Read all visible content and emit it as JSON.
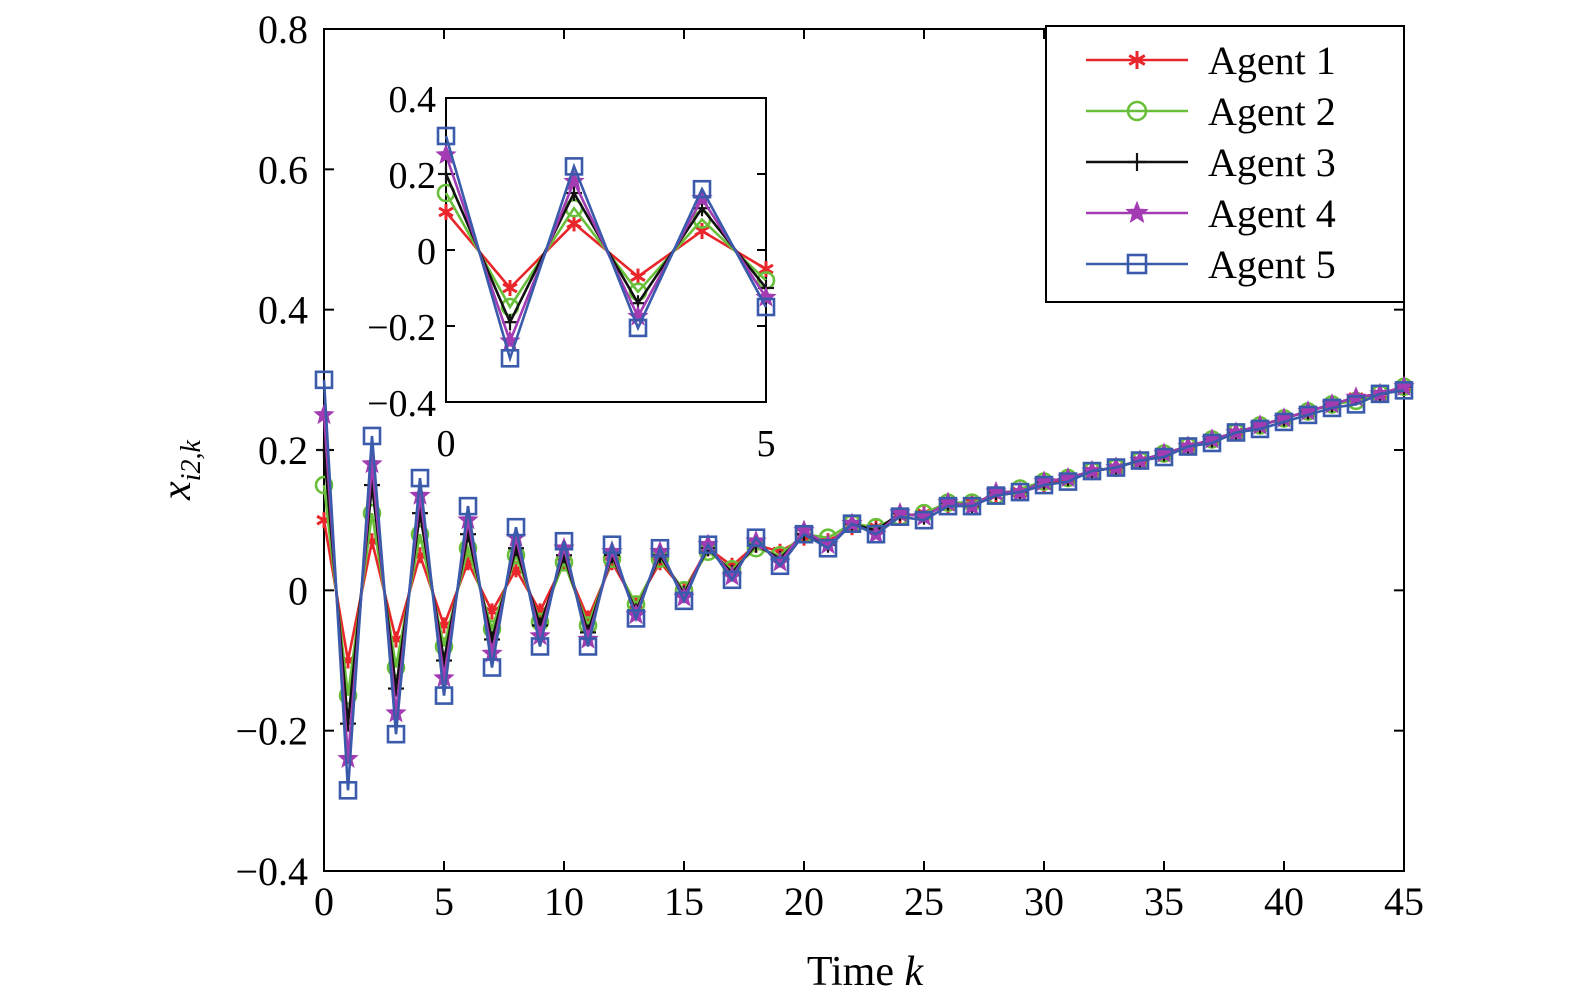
{
  "chart_data": {
    "type": "line",
    "xlabel": "Time",
    "xlabel_var": "k",
    "ylabel": "x",
    "ylabel_sub": "i2,k",
    "xlim": [
      0,
      45
    ],
    "ylim": [
      -0.4,
      0.8
    ],
    "xticks": [
      0,
      5,
      10,
      15,
      20,
      25,
      30,
      35,
      40,
      45
    ],
    "yticks": [
      -0.4,
      -0.2,
      0,
      0.2,
      0.4,
      0.6,
      0.8
    ],
    "xtick_labels": [
      "0",
      "5",
      "10",
      "15",
      "20",
      "25",
      "30",
      "35",
      "40",
      "45"
    ],
    "ytick_labels": [
      "−0.4",
      "−0.2",
      "0",
      "0.2",
      "0.4",
      "0.6",
      "0.8"
    ],
    "grid": false,
    "legend_position": "top-right",
    "x": [
      0,
      1,
      2,
      3,
      4,
      5,
      6,
      7,
      8,
      9,
      10,
      11,
      12,
      13,
      14,
      15,
      16,
      17,
      18,
      19,
      20,
      21,
      22,
      23,
      24,
      25,
      26,
      27,
      28,
      29,
      30,
      31,
      32,
      33,
      34,
      35,
      36,
      37,
      38,
      39,
      40,
      41,
      42,
      43,
      44,
      45
    ],
    "series": [
      {
        "name": "Agent 1",
        "color": "#e8262b",
        "marker": "asterisk",
        "values": [
          0.1,
          -0.1,
          0.07,
          -0.07,
          0.05,
          -0.05,
          0.04,
          -0.03,
          0.03,
          -0.03,
          0.04,
          -0.04,
          0.04,
          -0.02,
          0.04,
          0.0,
          0.06,
          0.035,
          0.065,
          0.055,
          0.075,
          0.07,
          0.09,
          0.09,
          0.105,
          0.11,
          0.12,
          0.125,
          0.135,
          0.14,
          0.15,
          0.16,
          0.17,
          0.175,
          0.185,
          0.195,
          0.205,
          0.215,
          0.225,
          0.235,
          0.245,
          0.255,
          0.265,
          0.275,
          0.28,
          0.29
        ]
      },
      {
        "name": "Agent 2",
        "color": "#6abf3a",
        "marker": "circle",
        "values": [
          0.15,
          -0.15,
          0.11,
          -0.11,
          0.08,
          -0.08,
          0.06,
          -0.055,
          0.05,
          -0.045,
          0.04,
          -0.05,
          0.045,
          -0.02,
          0.045,
          0.0,
          0.055,
          0.03,
          0.06,
          0.05,
          0.08,
          0.075,
          0.095,
          0.09,
          0.105,
          0.11,
          0.125,
          0.125,
          0.135,
          0.145,
          0.155,
          0.16,
          0.17,
          0.175,
          0.185,
          0.195,
          0.205,
          0.215,
          0.225,
          0.235,
          0.245,
          0.255,
          0.265,
          0.27,
          0.28,
          0.29
        ]
      },
      {
        "name": "Agent 3",
        "color": "#111111",
        "marker": "plus",
        "values": [
          0.2,
          -0.19,
          0.15,
          -0.14,
          0.11,
          -0.1,
          0.08,
          -0.07,
          0.06,
          -0.05,
          0.05,
          -0.06,
          0.05,
          -0.03,
          0.05,
          -0.005,
          0.06,
          0.025,
          0.065,
          0.045,
          0.08,
          0.065,
          0.095,
          0.085,
          0.11,
          0.105,
          0.125,
          0.12,
          0.14,
          0.14,
          0.155,
          0.16,
          0.17,
          0.175,
          0.185,
          0.195,
          0.205,
          0.215,
          0.225,
          0.235,
          0.245,
          0.255,
          0.265,
          0.275,
          0.28,
          0.29
        ]
      },
      {
        "name": "Agent 4",
        "color": "#a33cb3",
        "marker": "star",
        "values": [
          0.25,
          -0.24,
          0.18,
          -0.175,
          0.135,
          -0.125,
          0.1,
          -0.09,
          0.075,
          -0.065,
          0.06,
          -0.07,
          0.055,
          -0.035,
          0.055,
          -0.01,
          0.065,
          0.02,
          0.07,
          0.04,
          0.085,
          0.065,
          0.095,
          0.08,
          0.11,
          0.105,
          0.125,
          0.12,
          0.14,
          0.14,
          0.155,
          0.16,
          0.17,
          0.175,
          0.185,
          0.195,
          0.205,
          0.215,
          0.225,
          0.235,
          0.245,
          0.255,
          0.265,
          0.275,
          0.28,
          0.29
        ]
      },
      {
        "name": "Agent 5",
        "color": "#3a5bab",
        "marker": "square",
        "values": [
          0.3,
          -0.285,
          0.22,
          -0.205,
          0.16,
          -0.15,
          0.12,
          -0.11,
          0.09,
          -0.08,
          0.07,
          -0.08,
          0.065,
          -0.04,
          0.06,
          -0.015,
          0.065,
          0.015,
          0.075,
          0.035,
          0.08,
          0.06,
          0.095,
          0.08,
          0.105,
          0.1,
          0.12,
          0.12,
          0.135,
          0.14,
          0.15,
          0.155,
          0.17,
          0.175,
          0.185,
          0.19,
          0.205,
          0.21,
          0.225,
          0.23,
          0.24,
          0.25,
          0.26,
          0.265,
          0.28,
          0.285
        ]
      }
    ],
    "inset": {
      "xlim": [
        0,
        5
      ],
      "ylim": [
        -0.4,
        0.4
      ],
      "xticks": [
        0,
        5
      ],
      "yticks": [
        -0.4,
        -0.2,
        0,
        0.2,
        0.4
      ],
      "xtick_labels": [
        "0",
        "5"
      ],
      "ytick_labels": [
        "−0.4",
        "−0.2",
        "0",
        "0.2",
        "0.4"
      ]
    }
  }
}
